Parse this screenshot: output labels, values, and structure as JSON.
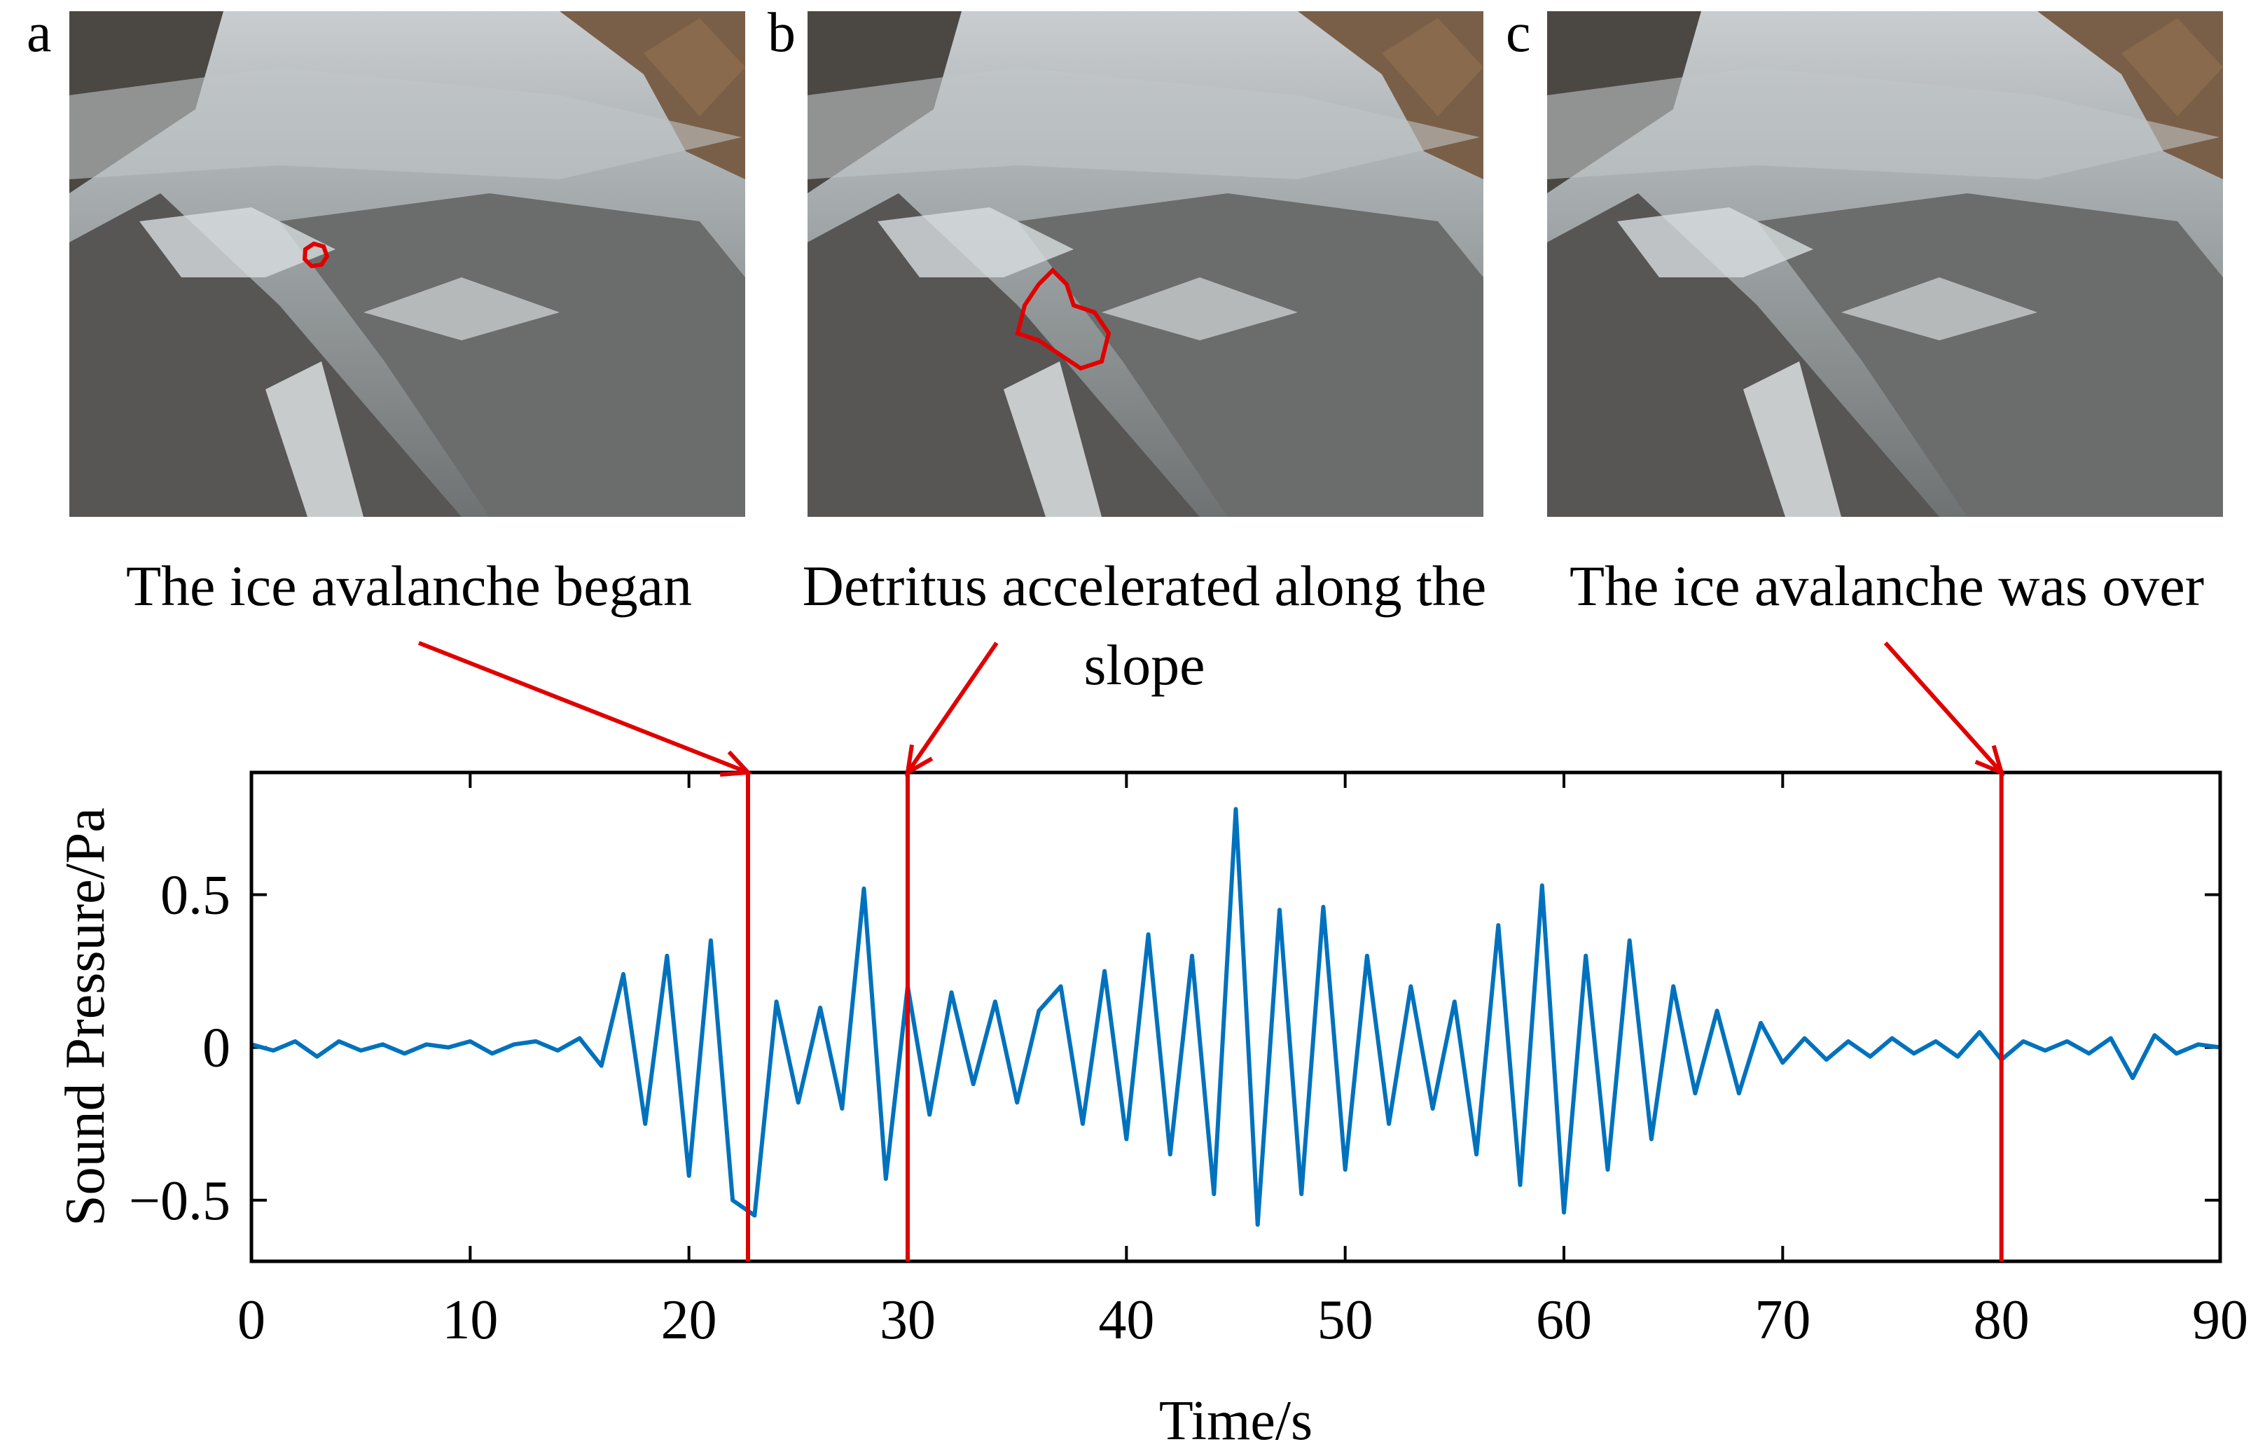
{
  "panels": [
    {
      "label": "a"
    },
    {
      "label": "b"
    },
    {
      "label": "c"
    }
  ],
  "chart_data": {
    "type": "line",
    "xlabel": "Time/s",
    "ylabel": "Sound Pressure/Pa",
    "x": [
      0,
      1,
      2,
      3,
      4,
      5,
      6,
      7,
      8,
      9,
      10,
      11,
      12,
      13,
      14,
      15,
      16,
      17,
      18,
      19,
      20,
      21,
      22,
      23,
      24,
      25,
      26,
      27,
      28,
      29,
      30,
      31,
      32,
      33,
      34,
      35,
      36,
      37,
      38,
      39,
      40,
      41,
      42,
      43,
      44,
      45,
      46,
      47,
      48,
      49,
      50,
      51,
      52,
      53,
      54,
      55,
      56,
      57,
      58,
      59,
      60,
      61,
      62,
      63,
      64,
      65,
      66,
      67,
      68,
      69,
      70,
      71,
      72,
      73,
      74,
      75,
      76,
      77,
      78,
      79,
      80,
      81,
      82,
      83,
      84,
      85,
      86,
      87,
      88,
      89,
      90
    ],
    "series": [
      {
        "color": "#0072bd",
        "values": [
          0.01,
          -0.01,
          0.02,
          -0.03,
          0.02,
          -0.01,
          0.01,
          -0.02,
          0.01,
          0.0,
          0.02,
          -0.02,
          0.01,
          0.02,
          -0.01,
          0.03,
          -0.06,
          0.24,
          -0.25,
          0.3,
          -0.42,
          0.35,
          -0.5,
          -0.55,
          0.15,
          -0.18,
          0.13,
          -0.2,
          0.52,
          -0.43,
          0.2,
          -0.22,
          0.18,
          -0.12,
          0.15,
          -0.18,
          0.12,
          0.2,
          -0.25,
          0.25,
          -0.3,
          0.37,
          -0.35,
          0.3,
          -0.48,
          0.78,
          -0.58,
          0.45,
          -0.48,
          0.46,
          -0.4,
          0.3,
          -0.25,
          0.2,
          -0.2,
          0.15,
          -0.35,
          0.4,
          -0.45,
          0.53,
          -0.54,
          0.3,
          -0.4,
          0.35,
          -0.3,
          0.2,
          -0.15,
          0.12,
          -0.15,
          0.08,
          -0.05,
          0.03,
          -0.04,
          0.02,
          -0.03,
          0.03,
          -0.02,
          0.02,
          -0.03,
          0.05,
          -0.04,
          0.02,
          -0.01,
          0.02,
          -0.02,
          0.03,
          -0.1,
          0.04,
          -0.02,
          0.01,
          0.0
        ]
      }
    ],
    "xlim": [
      0,
      90
    ],
    "xticks": [
      0,
      10,
      20,
      30,
      40,
      50,
      60,
      70,
      80,
      90
    ],
    "ylim": [
      -0.7,
      0.9
    ],
    "yticks": [
      {
        "value": -0.5,
        "label": "−0.5"
      },
      0,
      0.5
    ],
    "markers": [
      {
        "x": 22.7,
        "label": "The ice avalanche began",
        "color": "#e00000"
      },
      {
        "x": 30,
        "label": "Detritus accelerated along the slope",
        "color": "#e00000"
      },
      {
        "x": 80,
        "label": "The ice avalanche was over",
        "color": "#e00000"
      }
    ]
  }
}
